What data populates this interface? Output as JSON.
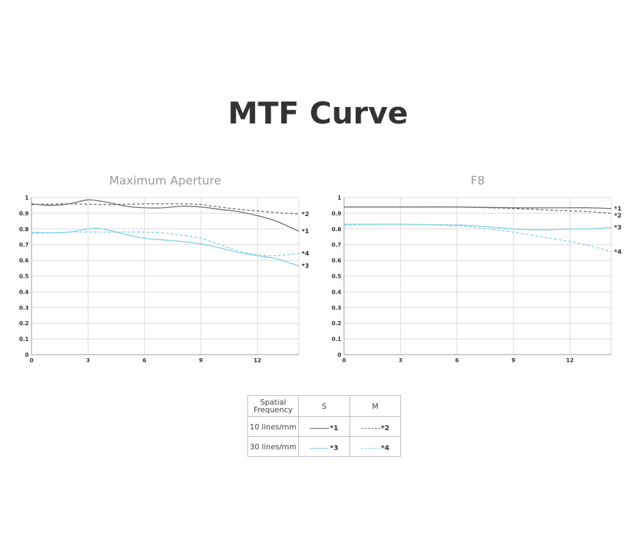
{
  "title": "MTF Curve",
  "colors": {
    "ten_lines": "#666666",
    "thirty_lines": "#7dcfe6"
  },
  "legend": {
    "header": [
      "Spatial",
      "Frequency"
    ],
    "col_s": "S",
    "col_m": "M",
    "rows": [
      {
        "label": "10 lines/mm",
        "s": "*1",
        "m": "*2"
      },
      {
        "label": "30 lines/mm",
        "s": "*3",
        "m": "*4"
      }
    ]
  },
  "chart_data": [
    {
      "type": "line",
      "title": "Maximum Aperture",
      "xlim": [
        0,
        14.2
      ],
      "ylim": [
        0,
        1
      ],
      "xticks": [
        "0",
        "3",
        "6",
        "9",
        "12"
      ],
      "yticks": [
        "0",
        "0.1",
        "0.2",
        "0.3",
        "0.4",
        "0.5",
        "0.6",
        "0.7",
        "0.8",
        "0.9",
        "1"
      ],
      "grid": true,
      "series": [
        {
          "name": "*1",
          "color": "#666666",
          "style": "solid",
          "x": [
            0,
            1,
            2,
            3,
            4,
            5,
            6,
            7,
            8,
            9,
            10,
            11,
            12,
            13,
            14.2
          ],
          "y": [
            0.96,
            0.95,
            0.96,
            0.985,
            0.97,
            0.945,
            0.935,
            0.935,
            0.945,
            0.94,
            0.925,
            0.91,
            0.885,
            0.85,
            0.785
          ]
        },
        {
          "name": "*2",
          "color": "#666666",
          "style": "dashed",
          "x": [
            0,
            2,
            4,
            6,
            8,
            9,
            10,
            11,
            12,
            13,
            14.2
          ],
          "y": [
            0.955,
            0.96,
            0.955,
            0.96,
            0.96,
            0.955,
            0.94,
            0.925,
            0.915,
            0.905,
            0.895
          ]
        },
        {
          "name": "*3",
          "color": "#7dcfe6",
          "style": "solid",
          "x": [
            0,
            1,
            2,
            3,
            3.5,
            4,
            5,
            6,
            7,
            8,
            9,
            10,
            11,
            12,
            13,
            14.2
          ],
          "y": [
            0.78,
            0.775,
            0.78,
            0.8,
            0.805,
            0.795,
            0.765,
            0.74,
            0.73,
            0.72,
            0.705,
            0.68,
            0.65,
            0.63,
            0.61,
            0.565
          ]
        },
        {
          "name": "*4",
          "color": "#7dcfe6",
          "style": "dashed",
          "x": [
            0,
            2,
            4,
            6,
            7,
            8,
            9,
            10,
            11,
            12,
            13,
            14.2
          ],
          "y": [
            0.77,
            0.78,
            0.78,
            0.78,
            0.775,
            0.76,
            0.74,
            0.7,
            0.66,
            0.635,
            0.63,
            0.645
          ]
        }
      ]
    },
    {
      "type": "line",
      "title": "F8",
      "xlim": [
        0,
        14.2
      ],
      "ylim": [
        0,
        1
      ],
      "xticks": [
        "0",
        "3",
        "6",
        "9",
        "12"
      ],
      "yticks": [
        "0",
        "0.1",
        "0.2",
        "0.3",
        "0.4",
        "0.5",
        "0.6",
        "0.7",
        "0.8",
        "0.9",
        "1"
      ],
      "grid": true,
      "series": [
        {
          "name": "*1",
          "color": "#666666",
          "style": "solid",
          "x": [
            0,
            3,
            6,
            9,
            12,
            13,
            14.2
          ],
          "y": [
            0.94,
            0.94,
            0.94,
            0.935,
            0.935,
            0.935,
            0.93
          ]
        },
        {
          "name": "*2",
          "color": "#666666",
          "style": "dashed",
          "x": [
            0,
            3,
            6,
            9,
            10,
            11,
            12,
            13,
            14.2
          ],
          "y": [
            0.94,
            0.94,
            0.94,
            0.93,
            0.925,
            0.92,
            0.915,
            0.91,
            0.9
          ]
        },
        {
          "name": "*3",
          "color": "#7dcfe6",
          "style": "solid",
          "x": [
            0,
            3,
            6,
            7,
            8,
            9,
            10,
            11,
            12,
            13,
            14.2
          ],
          "y": [
            0.83,
            0.83,
            0.825,
            0.82,
            0.81,
            0.8,
            0.795,
            0.795,
            0.8,
            0.8,
            0.81
          ]
        },
        {
          "name": "*4",
          "color": "#7dcfe6",
          "style": "dashed",
          "x": [
            0,
            3,
            6,
            7,
            8,
            9,
            10,
            11,
            12,
            13,
            14.2
          ],
          "y": [
            0.825,
            0.83,
            0.82,
            0.81,
            0.795,
            0.78,
            0.76,
            0.74,
            0.72,
            0.695,
            0.655
          ]
        }
      ]
    }
  ]
}
